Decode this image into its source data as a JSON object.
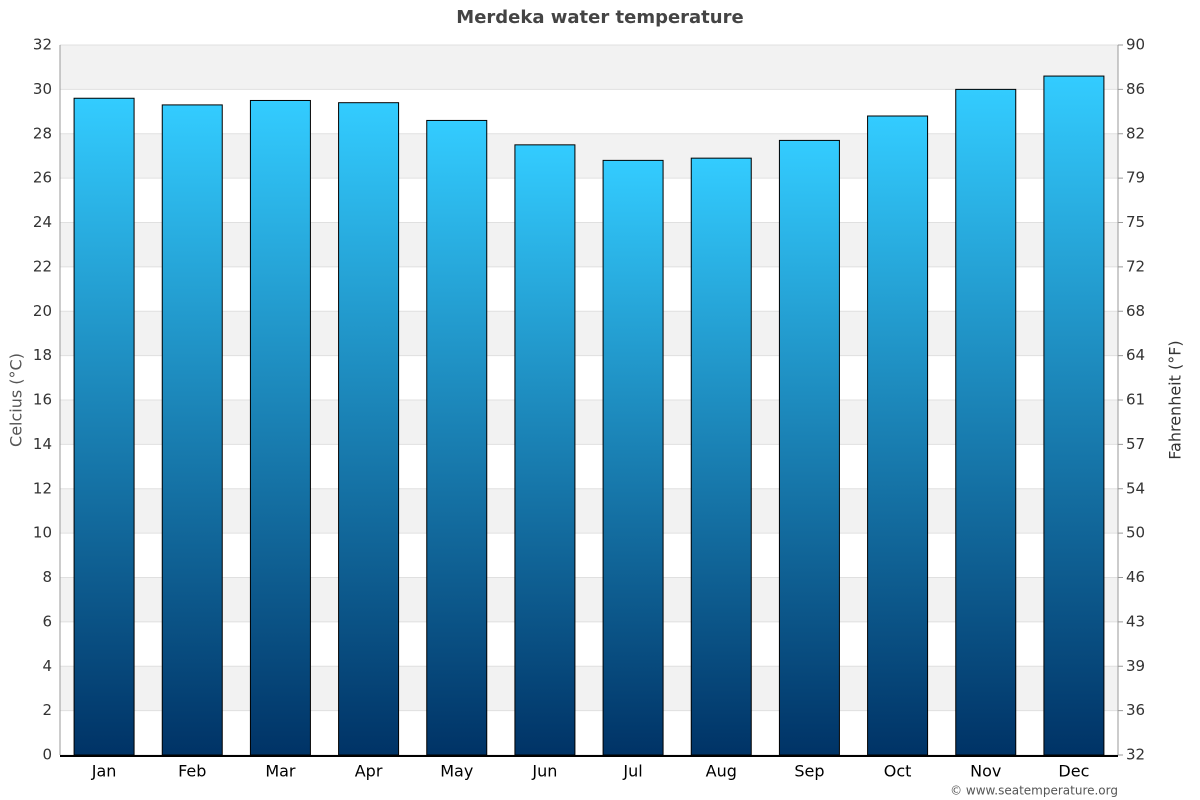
{
  "chart_data": {
    "type": "bar",
    "title": "Merdeka water temperature",
    "categories": [
      "Jan",
      "Feb",
      "Mar",
      "Apr",
      "May",
      "Jun",
      "Jul",
      "Aug",
      "Sep",
      "Oct",
      "Nov",
      "Dec"
    ],
    "values": [
      29.6,
      29.3,
      29.5,
      29.4,
      28.6,
      27.5,
      26.8,
      26.9,
      27.7,
      28.8,
      30.0,
      30.6
    ],
    "color": "#33ccff",
    "y_label": "Celcius (°C)",
    "y2_label": "Fahrenheit (°F)",
    "ylim": [
      0,
      32
    ],
    "yticks": [
      0,
      2,
      4,
      6,
      8,
      10,
      12,
      14,
      16,
      18,
      20,
      22,
      24,
      26,
      28,
      30,
      32
    ],
    "y2lim": [
      32,
      89.6
    ],
    "y2ticks": [
      32,
      {
        "value": 35.6,
        "label": "36"
      },
      {
        "value": 39.2,
        "label": "39"
      },
      {
        "value": 42.8,
        "label": "43"
      },
      {
        "value": 46.4,
        "label": "46"
      },
      50,
      {
        "value": 53.6,
        "label": "54"
      },
      {
        "value": 57.2,
        "label": "57"
      },
      {
        "value": 60.8,
        "label": "61"
      },
      {
        "value": 64.4,
        "label": "64"
      },
      68,
      {
        "value": 71.6,
        "label": "72"
      },
      {
        "value": 75.2,
        "label": "75"
      },
      {
        "value": 78.8,
        "label": "79"
      },
      {
        "value": 82.4,
        "label": "82"
      },
      86,
      {
        "value": 89.6,
        "label": "90"
      }
    ],
    "grid": true,
    "credit": "© www.seatemperature.org"
  }
}
